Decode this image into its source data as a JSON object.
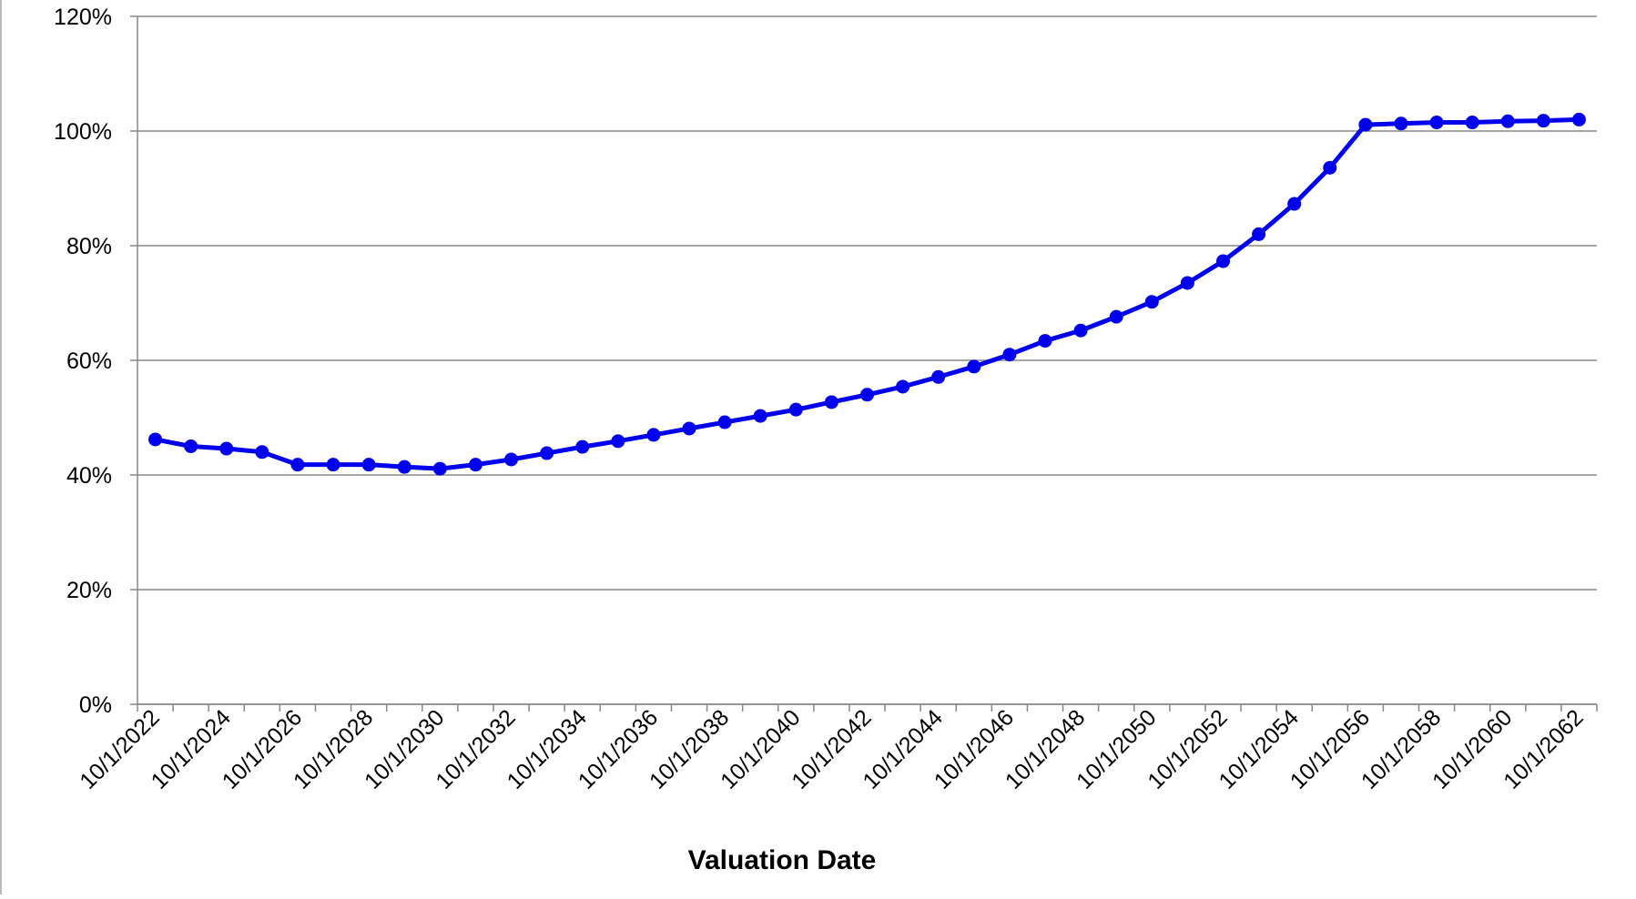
{
  "chart_data": {
    "type": "line",
    "x_label": "Valuation Date",
    "categories": [
      "10/1/2022",
      null,
      "10/1/2024",
      null,
      "10/1/2026",
      null,
      "10/1/2028",
      null,
      "10/1/2030",
      null,
      "10/1/2032",
      null,
      "10/1/2034",
      null,
      "10/1/2036",
      null,
      "10/1/2038",
      null,
      "10/1/2040",
      null,
      "10/1/2042",
      null,
      "10/1/2044",
      null,
      "10/1/2046",
      null,
      "10/1/2048",
      null,
      "10/1/2050",
      null,
      "10/1/2052",
      null,
      "10/1/2054",
      null,
      "10/1/2056",
      null,
      "10/1/2058",
      null,
      "10/1/2060",
      null,
      "10/1/2062"
    ],
    "series": [
      {
        "color": "#0000ee",
        "values": [
          46.2,
          45,
          44.6,
          44,
          41.8,
          41.8,
          41.8,
          41.4,
          41.1,
          41.8,
          42.7,
          43.8,
          44.9,
          45.9,
          47,
          48.1,
          49.2,
          50.3,
          51.4,
          52.7,
          54,
          55.4,
          57.1,
          58.9,
          61,
          63.4,
          65.2,
          67.6,
          70.2,
          73.5,
          77.3,
          82,
          87.3,
          93.6,
          101.1,
          101.3,
          101.5,
          101.5,
          101.7,
          101.8,
          102
        ]
      }
    ],
    "ylim": [
      0,
      120
    ],
    "yticks": [
      {
        "value": 0,
        "label": "0%"
      },
      {
        "value": 20,
        "label": "20%"
      },
      {
        "value": 40,
        "label": "40%"
      },
      {
        "value": 60,
        "label": "60%"
      },
      {
        "value": 80,
        "label": "80%"
      },
      {
        "value": 100,
        "label": "100%"
      },
      {
        "value": 120,
        "label": "120%"
      }
    ],
    "grid": true
  }
}
